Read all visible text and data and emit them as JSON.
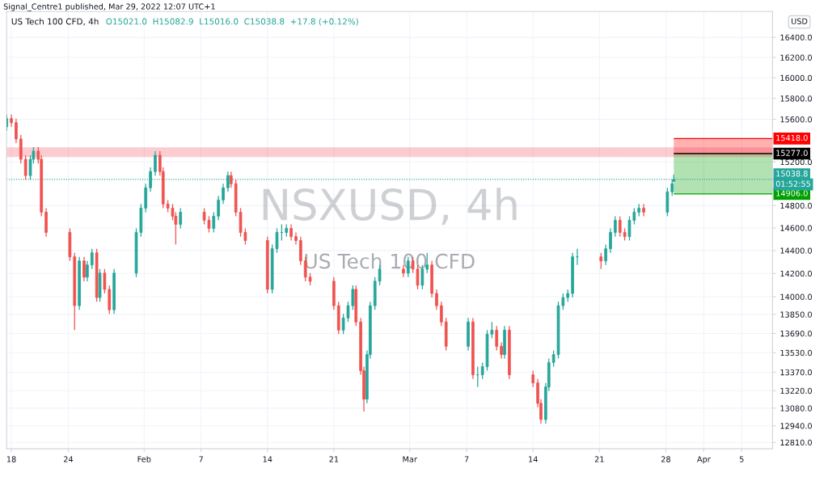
{
  "chart_data": {
    "type": "candlestick",
    "title": "US Tech 100 CFD, 4h",
    "subtitle": "O15021.0  H15082.9  L15016.0  C15038.8  +17.8 (+0.12%)",
    "ylabel": "USD",
    "annotations": [
      "Signal_Centre1 published, Mar 29, 2022 12:07 UTC+1",
      "NSXUSD, 4h",
      "US Tech 100 CFD",
      "01:52:55"
    ],
    "x": [
      "2022-01-17T12:00",
      "2022-01-18T00:00",
      "2022-01-18T12:00",
      "2022-01-19T00:00",
      "2022-01-19T12:00",
      "2022-01-20T00:00",
      "2022-01-20T08:00",
      "2022-01-20T20:00",
      "2022-01-21T04:00",
      "2022-01-21T16:00",
      "2022-01-24T04:00",
      "2022-01-24T16:00",
      "2022-01-25T04:00",
      "2022-01-25T16:00",
      "2022-01-26T00:00",
      "2022-01-26T12:00",
      "2022-01-27T00:00",
      "2022-01-27T08:00",
      "2022-01-27T20:00",
      "2022-01-28T08:00",
      "2022-01-28T20:00",
      "2022-01-31T04:00",
      "2022-01-31T16:00",
      "2022-02-01T04:00",
      "2022-02-01T16:00",
      "2022-02-02T04:00",
      "2022-02-02T16:00",
      "2022-02-03T00:00",
      "2022-02-03T12:00",
      "2022-02-04T00:00",
      "2022-02-04T08:00",
      "2022-02-04T20:00",
      "2022-02-07T08:00",
      "2022-02-07T20:00",
      "2022-02-08T08:00",
      "2022-02-08T20:00",
      "2022-02-09T08:00",
      "2022-02-09T20:00",
      "2022-02-10T04:00",
      "2022-02-10T16:00",
      "2022-02-11T04:00",
      "2022-02-11T16:00",
      "2022-02-14T00:00",
      "2022-02-14T12:00",
      "2022-02-15T00:00",
      "2022-02-15T12:00",
      "2022-02-16T00:00",
      "2022-02-16T12:00",
      "2022-02-17T00:00",
      "2022-02-17T12:00",
      "2022-02-18T00:00",
      "2022-02-18T12:00",
      "2022-02-21T00:00",
      "2022-02-21T12:00",
      "2022-02-22T00:00",
      "2022-02-22T12:00",
      "2022-02-23T00:00",
      "2022-02-23T08:00",
      "2022-02-23T20:00",
      "2022-02-24T04:00",
      "2022-02-24T12:00",
      "2022-02-24T20:00",
      "2022-02-25T08:00",
      "2022-02-25T20:00",
      "2022-02-28T08:00",
      "2022-02-28T20:00",
      "2022-03-01T08:00",
      "2022-03-01T20:00",
      "2022-03-02T08:00",
      "2022-03-02T20:00",
      "2022-03-03T08:00",
      "2022-03-03T20:00",
      "2022-03-04T08:00",
      "2022-03-04T20:00",
      "2022-03-07T04:00",
      "2022-03-07T16:00",
      "2022-03-08T04:00",
      "2022-03-08T16:00",
      "2022-03-09T04:00",
      "2022-03-09T16:00",
      "2022-03-10T04:00",
      "2022-03-10T16:00",
      "2022-03-11T00:00",
      "2022-03-11T12:00",
      "2022-03-14T00:00",
      "2022-03-14T12:00",
      "2022-03-14T20:00",
      "2022-03-15T08:00",
      "2022-03-15T16:00",
      "2022-03-16T04:00",
      "2022-03-16T16:00",
      "2022-03-17T04:00",
      "2022-03-17T16:00",
      "2022-03-18T04:00",
      "2022-03-18T16:00",
      "2022-03-21T04:00",
      "2022-03-21T16:00",
      "2022-03-22T04:00",
      "2022-03-22T16:00",
      "2022-03-23T04:00",
      "2022-03-23T16:00",
      "2022-03-24T04:00",
      "2022-03-24T16:00",
      "2022-03-25T04:00",
      "2022-03-25T16:00",
      "2022-03-28T04:00",
      "2022-03-28T16:00",
      "2022-03-28T20:00"
    ],
    "ohlc": [
      [
        15529,
        15645,
        15491,
        15607
      ],
      [
        15607,
        15645,
        15529,
        15568
      ],
      [
        15568,
        15607,
        15376,
        15414
      ],
      [
        15414,
        15452,
        15186,
        15224
      ],
      [
        15224,
        15262,
        15037,
        15074
      ],
      [
        15074,
        15262,
        15037,
        15224
      ],
      [
        15224,
        15338,
        15186,
        15300
      ],
      [
        15300,
        15338,
        15186,
        15224
      ],
      [
        15224,
        15262,
        14705,
        14741
      ],
      [
        14741,
        14778,
        14523,
        14560
      ],
      [
        14560,
        14596,
        14309,
        14345
      ],
      [
        14345,
        14380,
        13718,
        13924
      ],
      [
        13924,
        14345,
        13889,
        14309
      ],
      [
        14309,
        14345,
        14133,
        14168
      ],
      [
        14168,
        14309,
        14133,
        14274
      ],
      [
        14274,
        14416,
        14238,
        14380
      ],
      [
        14380,
        14416,
        13958,
        13993
      ],
      [
        13993,
        14238,
        13958,
        14203
      ],
      [
        14203,
        14238,
        14028,
        14063
      ],
      [
        14063,
        14098,
        13855,
        13889
      ],
      [
        13889,
        14238,
        13855,
        14203
      ],
      [
        14203,
        14596,
        14168,
        14560
      ],
      [
        14560,
        14815,
        14523,
        14778
      ],
      [
        14778,
        14999,
        14741,
        14962
      ],
      [
        14962,
        15149,
        14925,
        15111
      ],
      [
        15111,
        15300,
        15074,
        15262
      ],
      [
        15262,
        15300,
        15074,
        15111
      ],
      [
        15111,
        15149,
        14778,
        14815
      ],
      [
        14815,
        14851,
        14741,
        14778
      ],
      [
        14778,
        14815,
        14668,
        14705
      ],
      [
        14705,
        14741,
        14452,
        14632
      ],
      [
        14632,
        14778,
        14596,
        14741
      ],
      [
        14741,
        14778,
        14632,
        14668
      ],
      [
        14668,
        14705,
        14560,
        14596
      ],
      [
        14596,
        14741,
        14560,
        14705
      ],
      [
        14705,
        14888,
        14668,
        14851
      ],
      [
        14851,
        14999,
        14815,
        14962
      ],
      [
        14962,
        15111,
        14925,
        15074
      ],
      [
        15074,
        15111,
        14962,
        14999
      ],
      [
        14999,
        15037,
        14705,
        14741
      ],
      [
        14741,
        14778,
        14523,
        14560
      ],
      [
        14560,
        14596,
        14452,
        14488
      ],
      [
        14488,
        14523,
        14028,
        14063
      ],
      [
        14063,
        14452,
        14028,
        14416
      ],
      [
        14416,
        14596,
        14380,
        14560
      ],
      [
        14560,
        14632,
        14488,
        14560
      ],
      [
        14560,
        14632,
        14523,
        14596
      ],
      [
        14596,
        14632,
        14488,
        14523
      ],
      [
        14523,
        14560,
        14452,
        14488
      ],
      [
        14488,
        14523,
        14274,
        14309
      ],
      [
        14309,
        14345,
        14133,
        14168
      ],
      [
        14168,
        14203,
        14098,
        14133
      ],
      [
        14133,
        14168,
        13889,
        13924
      ],
      [
        13924,
        13958,
        13684,
        13718
      ],
      [
        13718,
        13855,
        13684,
        13820
      ],
      [
        13820,
        13958,
        13786,
        13924
      ],
      [
        13924,
        14098,
        13889,
        14063
      ],
      [
        14063,
        14098,
        13752,
        13786
      ],
      [
        13786,
        13820,
        13349,
        13382
      ],
      [
        13382,
        13415,
        13054,
        13152
      ],
      [
        13152,
        13549,
        13119,
        13515
      ],
      [
        13515,
        13958,
        13482,
        13924
      ],
      [
        13924,
        14168,
        13889,
        14133
      ],
      [
        14133,
        14274,
        14098,
        14238
      ],
      [
        14238,
        14274,
        14168,
        14203
      ],
      [
        14203,
        14345,
        14168,
        14309
      ],
      [
        14309,
        14345,
        14203,
        14238
      ],
      [
        14238,
        14274,
        14063,
        14098
      ],
      [
        14098,
        14274,
        14063,
        14238
      ],
      [
        14238,
        14380,
        14203,
        14274
      ],
      [
        14274,
        14309,
        13993,
        14028
      ],
      [
        14028,
        14063,
        13889,
        13924
      ],
      [
        13924,
        13958,
        13752,
        13786
      ],
      [
        13786,
        13820,
        13549,
        13583
      ],
      [
        13583,
        13820,
        13549,
        13786
      ],
      [
        13786,
        13820,
        13316,
        13349
      ],
      [
        13349,
        13415,
        13250,
        13349
      ],
      [
        13349,
        13449,
        13316,
        13415
      ],
      [
        13415,
        13718,
        13382,
        13684
      ],
      [
        13684,
        13786,
        13650,
        13718
      ],
      [
        13718,
        13752,
        13549,
        13583
      ],
      [
        13583,
        13616,
        13482,
        13515
      ],
      [
        13515,
        13752,
        13482,
        13718
      ],
      [
        13718,
        13752,
        13316,
        13349
      ],
      [
        13349,
        13382,
        13250,
        13283
      ],
      [
        13283,
        13316,
        13087,
        13119
      ],
      [
        13119,
        13152,
        12958,
        12990
      ],
      [
        12990,
        13283,
        12958,
        13250
      ],
      [
        13250,
        13482,
        13217,
        13449
      ],
      [
        13449,
        13549,
        13415,
        13515
      ],
      [
        13515,
        13958,
        13482,
        13924
      ],
      [
        13924,
        14028,
        13889,
        13993
      ],
      [
        13993,
        14063,
        13958,
        14028
      ],
      [
        14028,
        14380,
        13993,
        14345
      ],
      [
        14345,
        14416,
        14274,
        14345
      ],
      [
        14345,
        14380,
        14238,
        14309
      ],
      [
        14309,
        14452,
        14274,
        14416
      ],
      [
        14416,
        14596,
        14380,
        14560
      ],
      [
        14560,
        14705,
        14523,
        14668
      ],
      [
        14668,
        14705,
        14523,
        14560
      ],
      [
        14560,
        14596,
        14488,
        14523
      ],
      [
        14523,
        14705,
        14488,
        14668
      ],
      [
        14668,
        14778,
        14632,
        14741
      ],
      [
        14741,
        14815,
        14705,
        14778
      ],
      [
        14778,
        14815,
        14705,
        14741
      ],
      [
        14741,
        14962,
        14705,
        14925
      ],
      [
        14925,
        15037,
        14888,
        14999
      ],
      [
        15021.0,
        15082.9,
        15016.0,
        15038.8
      ]
    ],
    "colors": [
      "#26a69a",
      "#ef5350",
      "#ef5350",
      "#ef5350",
      "#ef5350",
      "#26a69a",
      "#26a69a",
      "#ef5350",
      "#ef5350",
      "#ef5350",
      "#ef5350",
      "#ef5350",
      "#26a69a",
      "#ef5350",
      "#26a69a",
      "#26a69a",
      "#ef5350",
      "#26a69a",
      "#ef5350",
      "#ef5350",
      "#26a69a",
      "#26a69a",
      "#26a69a",
      "#26a69a",
      "#26a69a",
      "#26a69a",
      "#ef5350",
      "#ef5350",
      "#ef5350",
      "#ef5350",
      "#ef5350",
      "#26a69a",
      "#ef5350",
      "#ef5350",
      "#26a69a",
      "#26a69a",
      "#26a69a",
      "#26a69a",
      "#ef5350",
      "#ef5350",
      "#ef5350",
      "#ef5350",
      "#ef5350",
      "#26a69a",
      "#26a69a",
      "#26a69a",
      "#26a69a",
      "#ef5350",
      "#ef5350",
      "#ef5350",
      "#ef5350",
      "#ef5350",
      "#ef5350",
      "#ef5350",
      "#26a69a",
      "#26a69a",
      "#26a69a",
      "#ef5350",
      "#ef5350",
      "#ef5350",
      "#26a69a",
      "#26a69a",
      "#26a69a",
      "#26a69a",
      "#ef5350",
      "#26a69a",
      "#ef5350",
      "#ef5350",
      "#26a69a",
      "#26a69a",
      "#ef5350",
      "#ef5350",
      "#ef5350",
      "#ef5350",
      "#26a69a",
      "#ef5350",
      "#26a69a",
      "#26a69a",
      "#26a69a",
      "#26a69a",
      "#ef5350",
      "#ef5350",
      "#26a69a",
      "#ef5350",
      "#ef5350",
      "#ef5350",
      "#ef5350",
      "#26a69a",
      "#26a69a",
      "#26a69a",
      "#26a69a",
      "#26a69a",
      "#26a69a",
      "#26a69a",
      "#26a69a",
      "#ef5350",
      "#26a69a",
      "#26a69a",
      "#26a69a",
      "#ef5350",
      "#ef5350",
      "#26a69a",
      "#26a69a",
      "#26a69a",
      "#ef5350",
      "#26a69a",
      "#26a69a",
      "#26a69a"
    ],
    "log": true,
    "ylim": [
      12760,
      16660
    ],
    "yticks": [
      {
        "value": 12810,
        "label": "12810.0"
      },
      {
        "value": 12940,
        "label": "12940.0"
      },
      {
        "value": 13080,
        "label": "13080.0"
      },
      {
        "value": 13220,
        "label": "13220.0"
      },
      {
        "value": 13370,
        "label": "13370.0"
      },
      {
        "value": 13530,
        "label": "13530.0"
      },
      {
        "value": 13690,
        "label": "13690.0"
      },
      {
        "value": 13850,
        "label": "13850.0"
      },
      {
        "value": 14000,
        "label": "14000.0"
      },
      {
        "value": 14200,
        "label": "14200.0"
      },
      {
        "value": 14400,
        "label": "14400.0"
      },
      {
        "value": 14600,
        "label": "14600.0"
      },
      {
        "value": 14800,
        "label": "14800.0"
      },
      {
        "value": 15200,
        "label": "15200.0"
      },
      {
        "value": 15600,
        "label": "15600.0"
      },
      {
        "value": 15800,
        "label": "15800.0"
      },
      {
        "value": 16000,
        "label": "16000.0"
      },
      {
        "value": 16200,
        "label": "16200.0"
      },
      {
        "value": 16400,
        "label": "16400.0"
      }
    ],
    "xlim": [
      "2022-01-17T12:00",
      "2022-04-08T06:00"
    ],
    "xticks": [
      {
        "value": "2022-01-18",
        "label": "18"
      },
      {
        "value": "2022-01-24",
        "label": "24"
      },
      {
        "value": "2022-02-01",
        "label": "Feb"
      },
      {
        "value": "2022-02-07",
        "label": "7"
      },
      {
        "value": "2022-02-14",
        "label": "14"
      },
      {
        "value": "2022-02-21",
        "label": "21"
      },
      {
        "value": "2022-03-01",
        "label": "Mar"
      },
      {
        "value": "2022-03-07",
        "label": "7"
      },
      {
        "value": "2022-03-14",
        "label": "14"
      },
      {
        "value": "2022-03-21",
        "label": "21"
      },
      {
        "value": "2022-03-28",
        "label": "28"
      },
      {
        "value": "2022-04-01",
        "label": "Apr"
      },
      {
        "value": "2022-04-05",
        "label": "5"
      }
    ],
    "ref_lines": [
      {
        "axis": "y",
        "value": 15418.0,
        "label": "15418.0",
        "color": "#ff0000",
        "line_style": "solid"
      },
      {
        "axis": "y",
        "value": 15277.0,
        "label": "15277.0",
        "color": "#000000",
        "line_style": "solid"
      },
      {
        "axis": "y",
        "value": 15038.8,
        "label": "15038.8",
        "color": "#26a69a",
        "line_style": "dotted"
      },
      {
        "axis": "y",
        "value": 14906.0,
        "label": "14906.0",
        "color": "#00a000",
        "line_style": "solid"
      }
    ],
    "bands": [
      {
        "axis": "y",
        "from": 15250,
        "to": 15330,
        "color": "#f23645"
      }
    ],
    "grid": true
  }
}
